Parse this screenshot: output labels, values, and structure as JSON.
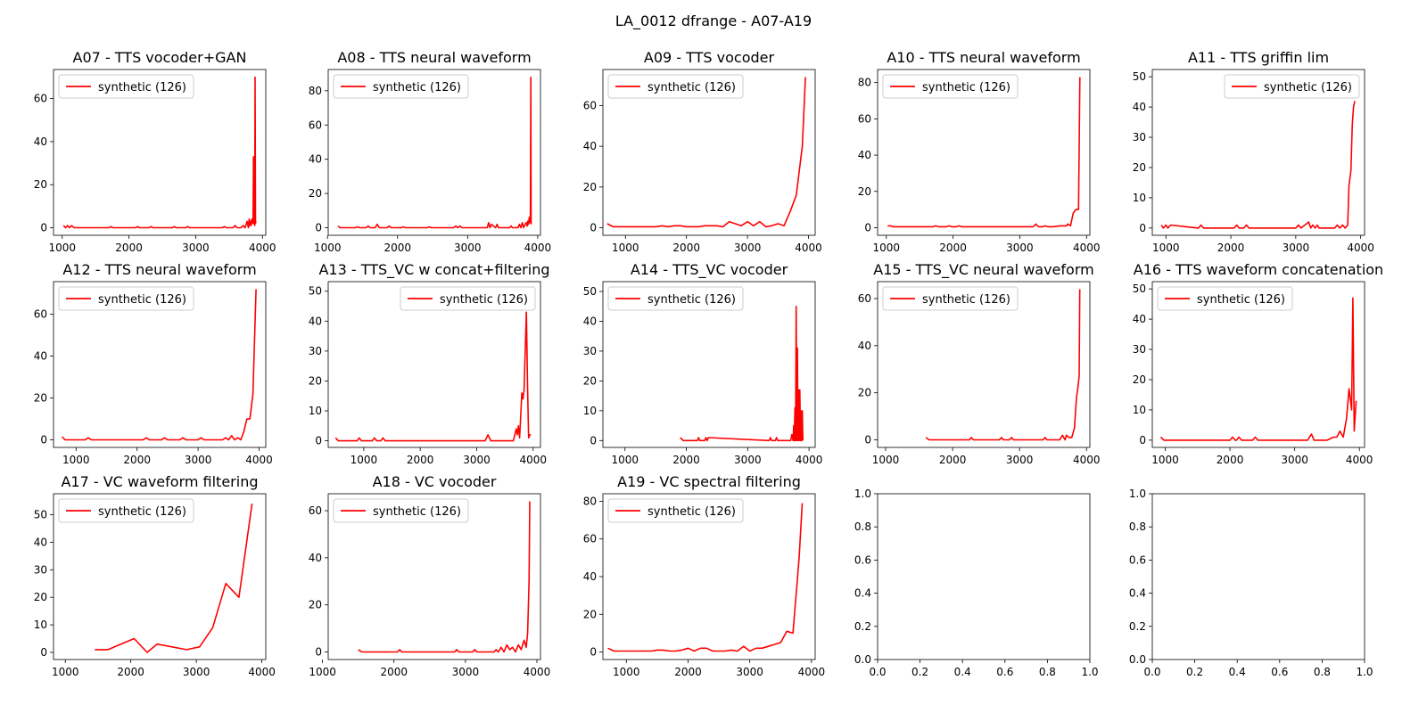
{
  "figure": {
    "suptitle": "LA_0012 dfrange - A07-A19",
    "line_color": "#ff0000"
  },
  "chart_data": [
    {
      "type": "line",
      "title": "A07 - TTS vocoder+GAN",
      "legend": "synthetic (126)",
      "legend_position": "upper-left",
      "xlim": [
        870,
        4050
      ],
      "ylim": [
        -3.5,
        73.5
      ],
      "xticks": [
        1000,
        2000,
        3000,
        4000
      ],
      "yticks": [
        0,
        20,
        40,
        60
      ],
      "x": [
        1020,
        1050,
        1080,
        1110,
        1140,
        1180,
        1700,
        1730,
        1760,
        2100,
        2130,
        2160,
        2300,
        2330,
        2360,
        2650,
        2680,
        2710,
        2850,
        2880,
        2910,
        3400,
        3430,
        3460,
        3560,
        3590,
        3620,
        3680,
        3710,
        3740,
        3770,
        3790,
        3800,
        3810,
        3820,
        3830,
        3840,
        3850,
        3860,
        3866,
        3872,
        3878,
        3884,
        3890,
        3896,
        3902
      ],
      "y": [
        1,
        0,
        1,
        0,
        1,
        0,
        0,
        0.5,
        0,
        0,
        0.5,
        0,
        0,
        0.5,
        0,
        0,
        0.5,
        0,
        0,
        0.5,
        0,
        0,
        0.5,
        0,
        0,
        1,
        0,
        0,
        1,
        0,
        3,
        0,
        4,
        1,
        3,
        1,
        4,
        2,
        5,
        33,
        2,
        3,
        1,
        70,
        2,
        3
      ]
    },
    {
      "type": "line",
      "title": "A08 - TTS neural waveform",
      "legend": "synthetic (126)",
      "legend_position": "upper-left",
      "xlim": [
        1010,
        4040
      ],
      "ylim": [
        -4.4,
        92.4
      ],
      "xticks": [
        1000,
        2000,
        3000,
        4000
      ],
      "yticks": [
        0,
        20,
        40,
        60,
        80
      ],
      "x": [
        1150,
        1180,
        1210,
        1400,
        1430,
        1460,
        1550,
        1580,
        1610,
        1680,
        1710,
        1740,
        1850,
        1880,
        1910,
        2050,
        2080,
        2110,
        2420,
        2450,
        2480,
        2800,
        2830,
        2860,
        2890,
        2920,
        3280,
        3300,
        3320,
        3340,
        3400,
        3420,
        3440,
        3600,
        3620,
        3640,
        3720,
        3740,
        3760,
        3780,
        3800,
        3820,
        3840,
        3850,
        3860,
        3870,
        3880,
        3890,
        3896,
        3902,
        3906
      ],
      "y": [
        1,
        0,
        0,
        0,
        0.5,
        0,
        0,
        1,
        0,
        0,
        2,
        0,
        0,
        1,
        0,
        0,
        0.5,
        0,
        0,
        0.5,
        0,
        0,
        1,
        0,
        1,
        0,
        0,
        3,
        0,
        2,
        0,
        2,
        0,
        0,
        1,
        0,
        0,
        2,
        0,
        3,
        0,
        2,
        3,
        1,
        4,
        2,
        6,
        3,
        8,
        88,
        2
      ]
    },
    {
      "type": "line",
      "title": "A09 - TTS vocoder",
      "legend": "synthetic (126)",
      "legend_position": "upper-left",
      "xlim": [
        630,
        4110
      ],
      "ylim": [
        -3.7,
        77.7
      ],
      "xticks": [
        1000,
        2000,
        3000,
        4000
      ],
      "yticks": [
        0,
        20,
        40,
        60
      ],
      "x": [
        700,
        800,
        1000,
        1200,
        1400,
        1500,
        1600,
        1700,
        1800,
        1900,
        2000,
        2100,
        2200,
        2300,
        2400,
        2500,
        2600,
        2700,
        2800,
        2900,
        3000,
        3100,
        3200,
        3300,
        3400,
        3500,
        3600,
        3700,
        3800,
        3900,
        3950
      ],
      "y": [
        2,
        0.5,
        0.5,
        0.5,
        0.5,
        0.5,
        1,
        0.5,
        1,
        1,
        0.5,
        0.5,
        0.5,
        1,
        1,
        1,
        0.5,
        3,
        2,
        1,
        3,
        1,
        3,
        0.5,
        1,
        2,
        1,
        8,
        16,
        40,
        74
      ]
    },
    {
      "type": "line",
      "title": "A10 - TTS neural waveform",
      "legend": "synthetic (126)",
      "legend_position": "upper-left",
      "xlim": [
        870,
        4050
      ],
      "ylim": [
        -4.2,
        87.2
      ],
      "xticks": [
        1000,
        2000,
        3000,
        4000
      ],
      "yticks": [
        0,
        20,
        40,
        60,
        80
      ],
      "x": [
        1020,
        1070,
        1100,
        1300,
        1500,
        1700,
        1740,
        1780,
        1900,
        1940,
        1980,
        2050,
        2090,
        2130,
        2200,
        2600,
        3000,
        3200,
        3240,
        3280,
        3340,
        3380,
        3420,
        3500,
        3600,
        3700,
        3720,
        3760,
        3800,
        3840,
        3880,
        3900
      ],
      "y": [
        1,
        1,
        0.5,
        0.5,
        0.5,
        0.5,
        1,
        0.5,
        0.5,
        1,
        0.5,
        0.5,
        1,
        0.5,
        0.5,
        0.5,
        0.5,
        0.5,
        2,
        0.5,
        0.5,
        1,
        0.5,
        0.5,
        1,
        1,
        2,
        1,
        8,
        10,
        10,
        83
      ]
    },
    {
      "type": "line",
      "title": "A11 - TTS griffin lim",
      "legend": "synthetic (126)",
      "legend_position": "upper-right",
      "xlim": [
        790,
        4060
      ],
      "ylim": [
        -2.4,
        52.4
      ],
      "xticks": [
        1000,
        2000,
        3000,
        4000
      ],
      "yticks": [
        0,
        10,
        20,
        30,
        40,
        50
      ],
      "x": [
        930,
        960,
        1000,
        1030,
        1070,
        1500,
        1540,
        1580,
        2050,
        2090,
        2130,
        2200,
        2240,
        2280,
        3000,
        3040,
        3080,
        3200,
        3230,
        3260,
        3300,
        3330,
        3360,
        3600,
        3640,
        3680,
        3720,
        3760,
        3800,
        3820,
        3850,
        3870,
        3890,
        3910
      ],
      "y": [
        1,
        0,
        1,
        0,
        1,
        0,
        1,
        0,
        0,
        1,
        0,
        0,
        1,
        0,
        0,
        1,
        0,
        2,
        0,
        1,
        0,
        1,
        0,
        0,
        1,
        0,
        1,
        0,
        1,
        14,
        19,
        34,
        40,
        42
      ]
    },
    {
      "type": "line",
      "title": "A12 - TTS neural waveform",
      "legend": "synthetic (126)",
      "legend_position": "upper-left",
      "xlim": [
        630,
        4110
      ],
      "ylim": [
        -3.6,
        75.6
      ],
      "xticks": [
        1000,
        2000,
        3000,
        4000
      ],
      "yticks": [
        0,
        20,
        40,
        60
      ],
      "x": [
        770,
        820,
        1000,
        1150,
        1200,
        1250,
        1600,
        2100,
        2150,
        2200,
        2400,
        2450,
        2500,
        2700,
        2750,
        2800,
        3000,
        3050,
        3100,
        3400,
        3450,
        3500,
        3550,
        3600,
        3650,
        3700,
        3750,
        3800,
        3850,
        3900,
        3950
      ],
      "y": [
        1.5,
        0,
        0,
        0,
        1,
        0,
        0,
        0,
        1,
        0,
        0,
        1,
        0,
        0,
        1,
        0,
        0,
        1,
        0,
        0,
        1,
        0,
        2,
        0,
        1,
        0,
        4,
        10,
        10,
        22,
        72
      ]
    },
    {
      "type": "line",
      "title": "A13 - TTS_VC w concat+filtering",
      "legend": "synthetic (126)",
      "legend_position": "upper-right",
      "xlim": [
        370,
        4130
      ],
      "ylim": [
        -2.2,
        53.2
      ],
      "xticks": [
        1000,
        2000,
        3000,
        4000
      ],
      "yticks": [
        0,
        10,
        20,
        30,
        40,
        50
      ],
      "x": [
        500,
        550,
        880,
        920,
        960,
        1150,
        1190,
        1230,
        1300,
        1340,
        1380,
        3150,
        3200,
        3250,
        3650,
        3700,
        3720,
        3740,
        3760,
        3780,
        3800,
        3820,
        3840,
        3860,
        3880,
        3900,
        3920,
        3940,
        3960
      ],
      "y": [
        1,
        0,
        0,
        1,
        0,
        0,
        1,
        0,
        0,
        1,
        0,
        0,
        2,
        0,
        0,
        4,
        2,
        5,
        1,
        8,
        16,
        14,
        17,
        30,
        43,
        20,
        1,
        2,
        2
      ]
    },
    {
      "type": "line",
      "title": "A14 - TTS_VC vocoder",
      "legend": "synthetic (126)",
      "legend_position": "upper-left",
      "xlim": [
        640,
        4100
      ],
      "ylim": [
        -2.3,
        53.3
      ],
      "xticks": [
        1000,
        2000,
        3000,
        4000
      ],
      "yticks": [
        0,
        10,
        20,
        30,
        40,
        50
      ],
      "x": [
        1900,
        1950,
        2180,
        2200,
        2220,
        2300,
        2320,
        2340,
        2360,
        3350,
        3370,
        3390,
        3450,
        3470,
        3490,
        3700,
        3720,
        3740,
        3750,
        3760,
        3770,
        3780,
        3790,
        3800,
        3810,
        3820,
        3830,
        3840,
        3850,
        3860,
        3870,
        3880,
        3890,
        3900
      ],
      "y": [
        1,
        0,
        0,
        1,
        0,
        0,
        1,
        0,
        1,
        0,
        1,
        0,
        0,
        1,
        0,
        0,
        2,
        0,
        5,
        0,
        11,
        0,
        45,
        0,
        31,
        0,
        17,
        0,
        17,
        0,
        10,
        0,
        10,
        0
      ]
    },
    {
      "type": "line",
      "title": "A15 - TTS_VC neural waveform",
      "legend": "synthetic (126)",
      "legend_position": "upper-left",
      "xlim": [
        880,
        4050
      ],
      "ylim": [
        -3.2,
        67.2
      ],
      "xticks": [
        1000,
        2000,
        3000,
        4000
      ],
      "yticks": [
        0,
        20,
        40,
        60
      ],
      "x": [
        1600,
        1650,
        2250,
        2280,
        2310,
        2700,
        2730,
        2760,
        2850,
        2880,
        2910,
        3350,
        3380,
        3410,
        3600,
        3640,
        3680,
        3700,
        3740,
        3780,
        3820,
        3850,
        3870,
        3890,
        3900
      ],
      "y": [
        1,
        0,
        0,
        1,
        0,
        0,
        1,
        0,
        0,
        1,
        0,
        0,
        1,
        0,
        0,
        2,
        0,
        2,
        1,
        1,
        5,
        18,
        22,
        27,
        64
      ]
    },
    {
      "type": "line",
      "title": "A16 - TTS waveform concatenation",
      "legend": "synthetic (126)",
      "legend_position": "upper-left",
      "xlim": [
        800,
        4080
      ],
      "ylim": [
        -2.4,
        52.4
      ],
      "xticks": [
        1000,
        2000,
        3000,
        4000
      ],
      "yticks": [
        0,
        10,
        20,
        30,
        40,
        50
      ],
      "x": [
        930,
        980,
        1200,
        1500,
        1800,
        2000,
        2040,
        2080,
        2100,
        2140,
        2180,
        2350,
        2390,
        2430,
        2800,
        3200,
        3260,
        3300,
        3400,
        3500,
        3600,
        3650,
        3700,
        3750,
        3800,
        3840,
        3880,
        3900,
        3920,
        3950
      ],
      "y": [
        1,
        0,
        0,
        0,
        0,
        0,
        1,
        0,
        0,
        1,
        0,
        0,
        1,
        0,
        0,
        0,
        2,
        0,
        0,
        0,
        1,
        1,
        3,
        1,
        7,
        17,
        10,
        47,
        3,
        13
      ]
    },
    {
      "type": "line",
      "title": "A17 - VC waveform filtering",
      "legend": "synthetic (126)",
      "legend_position": "upper-left",
      "xlim": [
        820,
        4060
      ],
      "ylim": [
        -2.6,
        57.6
      ],
      "xticks": [
        1000,
        2000,
        3000,
        4000
      ],
      "yticks": [
        0,
        10,
        20,
        30,
        40,
        50
      ],
      "x": [
        1450,
        1650,
        2050,
        2250,
        2400,
        2850,
        3050,
        3250,
        3450,
        3650,
        3850
      ],
      "y": [
        1,
        1,
        5,
        0,
        3,
        1,
        2,
        9,
        25,
        20,
        54
      ]
    },
    {
      "type": "line",
      "title": "A18 - VC vocoder",
      "legend": "synthetic (126)",
      "legend_position": "upper-left",
      "xlim": [
        1080,
        4050
      ],
      "ylim": [
        -3.2,
        67.2
      ],
      "xticks": [
        1000,
        2000,
        3000,
        4000
      ],
      "yticks": [
        0,
        20,
        40,
        60
      ],
      "x": [
        1500,
        1550,
        2050,
        2080,
        2110,
        2850,
        2880,
        2910,
        3100,
        3130,
        3160,
        3400,
        3430,
        3460,
        3500,
        3540,
        3580,
        3620,
        3660,
        3700,
        3740,
        3780,
        3820,
        3850,
        3870,
        3890,
        3900
      ],
      "y": [
        1,
        0,
        0,
        1,
        0,
        0,
        1,
        0,
        0,
        1,
        0,
        0,
        1,
        0,
        2,
        0,
        3,
        1,
        2,
        0,
        3,
        1,
        5,
        2,
        8,
        30,
        64
      ]
    },
    {
      "type": "line",
      "title": "A19 - VC spectral filtering",
      "legend": "synthetic (126)",
      "legend_position": "upper-left",
      "xlim": [
        620,
        4060
      ],
      "ylim": [
        -4.0,
        84.0
      ],
      "xticks": [
        1000,
        2000,
        3000,
        4000
      ],
      "yticks": [
        0,
        20,
        40,
        60,
        80
      ],
      "x": [
        700,
        800,
        1000,
        1200,
        1400,
        1500,
        1600,
        1700,
        1800,
        1900,
        2000,
        2100,
        2200,
        2300,
        2400,
        2500,
        2600,
        2700,
        2800,
        2900,
        3000,
        3100,
        3200,
        3300,
        3400,
        3500,
        3600,
        3700,
        3800,
        3850
      ],
      "y": [
        2,
        0.5,
        0.5,
        0.5,
        0.5,
        1,
        1,
        0.5,
        0.5,
        1,
        2,
        0.5,
        2,
        2,
        0.5,
        0.5,
        0.5,
        1,
        0.5,
        3,
        0.5,
        2,
        2,
        3,
        4,
        5,
        11,
        10,
        50,
        79
      ]
    },
    {
      "type": "line",
      "title": "",
      "legend": "",
      "xlim": [
        0,
        1
      ],
      "ylim": [
        0,
        1
      ],
      "xticks": [
        0.0,
        0.2,
        0.4,
        0.6,
        0.8,
        1.0
      ],
      "yticks": [
        0.0,
        0.2,
        0.4,
        0.6,
        0.8,
        1.0
      ],
      "x": [],
      "y": []
    },
    {
      "type": "line",
      "title": "",
      "legend": "",
      "xlim": [
        0,
        1
      ],
      "ylim": [
        0,
        1
      ],
      "xticks": [
        0.0,
        0.2,
        0.4,
        0.6,
        0.8,
        1.0
      ],
      "yticks": [
        0.0,
        0.2,
        0.4,
        0.6,
        0.8,
        1.0
      ],
      "x": [],
      "y": []
    }
  ]
}
